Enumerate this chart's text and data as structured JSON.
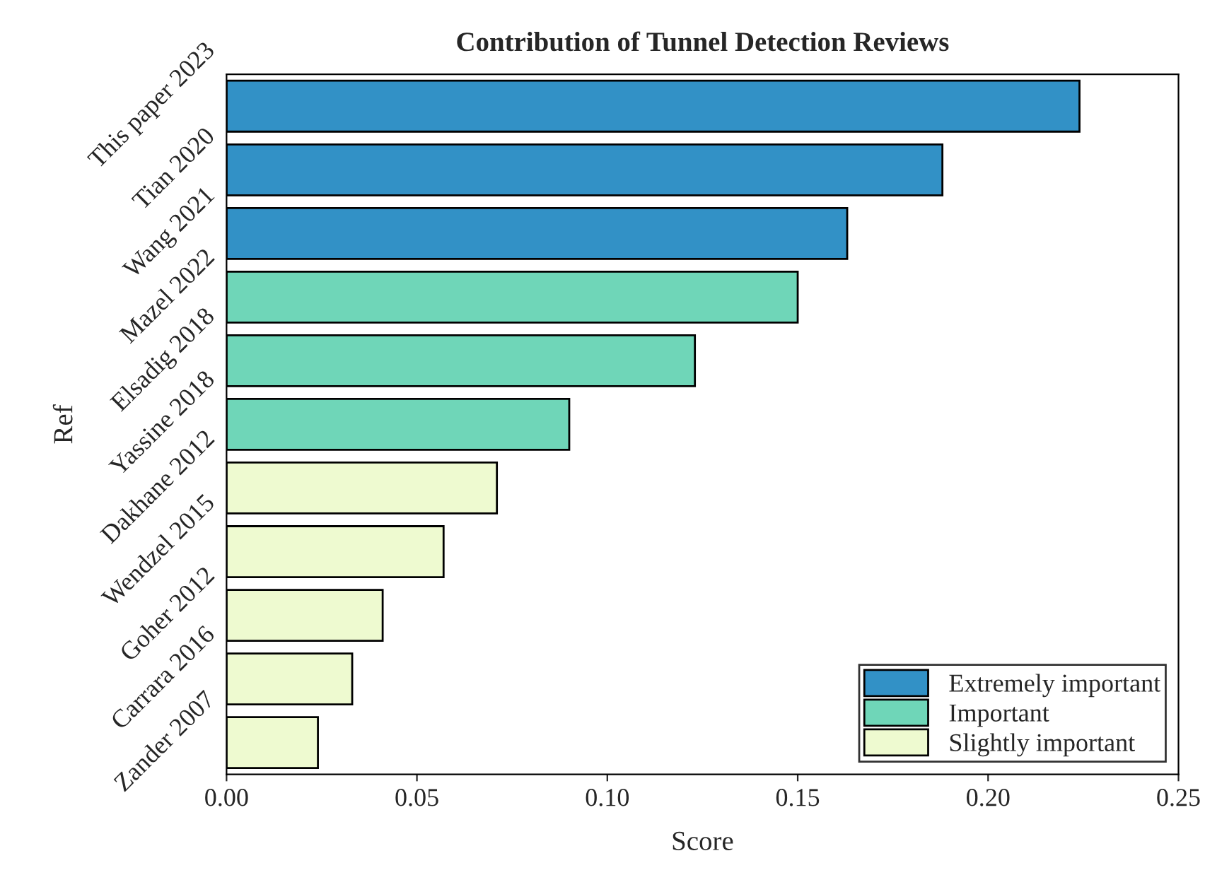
{
  "chart_data": {
    "type": "bar",
    "orientation": "horizontal",
    "title": "Contribution of Tunnel Detection Reviews",
    "xlabel": "Score",
    "ylabel": "Ref",
    "categories": [
      "This paper 2023",
      "Tian 2020",
      "Wang 2021",
      "Mazel 2022",
      "Elsadig 2018",
      "Yassine 2018",
      "Dakhane 2012",
      "Wendzel 2015",
      "Goher 2012",
      "Carrara 2016",
      "Zander 2007"
    ],
    "series": [
      {
        "name": "Extremely important",
        "color": "#3291c6",
        "values": [
          0.224,
          0.188,
          0.163,
          null,
          null,
          null,
          null,
          null,
          null,
          null,
          null
        ]
      },
      {
        "name": "Important",
        "color": "#6fd6b8",
        "values": [
          null,
          null,
          null,
          0.15,
          0.123,
          0.09,
          null,
          null,
          null,
          null,
          null
        ]
      },
      {
        "name": "Slightly important",
        "color": "#eefad0",
        "values": [
          null,
          null,
          null,
          null,
          null,
          null,
          0.071,
          0.057,
          0.041,
          0.033,
          0.024
        ]
      }
    ],
    "xlim": [
      0,
      0.25
    ],
    "xticks": [
      {
        "value": 0,
        "label": "0.00"
      },
      {
        "value": 0.05,
        "label": "0.05"
      },
      {
        "value": 0.1,
        "label": "0.10"
      },
      {
        "value": 0.15,
        "label": "0.15"
      },
      {
        "value": 0.2,
        "label": "0.20"
      },
      {
        "value": 0.25,
        "label": "0.25"
      }
    ],
    "stacked": true,
    "legend": "bottom right",
    "grid": false
  }
}
